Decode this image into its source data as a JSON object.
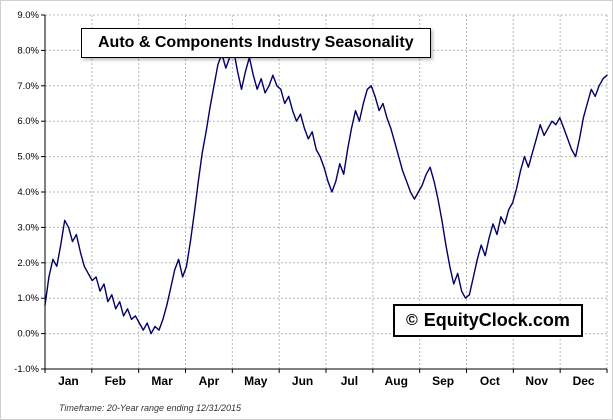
{
  "title": "Auto & Components Industry Seasonality",
  "watermark": {
    "copyright_symbol": "©",
    "text": "EquityClock.com"
  },
  "footnote": "Timeframe: 20-Year range ending 12/31/2015",
  "colors": {
    "line": "#000066",
    "grid": "#b8b8b8",
    "axis": "#000000",
    "background": "#ffffff",
    "label": "#000000"
  },
  "chart_data": {
    "type": "line",
    "title": "Auto & Components Industry Seasonality",
    "xlabel": "",
    "ylabel": "",
    "x_categories": [
      "Jan",
      "Feb",
      "Mar",
      "Apr",
      "May",
      "Jun",
      "Jul",
      "Aug",
      "Sep",
      "Oct",
      "Nov",
      "Dec"
    ],
    "y_tick_labels": [
      "9.0%",
      "8.0%",
      "7.0%",
      "6.0%",
      "5.0%",
      "4.0%",
      "3.0%",
      "2.0%",
      "1.0%",
      "0.0%",
      "-1.0%"
    ],
    "ylim": [
      -1.0,
      9.0
    ],
    "x_range": [
      0,
      12
    ],
    "points_per_month": 12,
    "x_spacing": "evenly spaced across Jan-Dec",
    "grid": true,
    "legend_position": "none",
    "values": [
      0.8,
      1.6,
      2.1,
      1.9,
      2.5,
      3.2,
      3.0,
      2.6,
      2.8,
      2.3,
      1.9,
      1.7,
      1.5,
      1.6,
      1.2,
      1.4,
      0.9,
      1.1,
      0.7,
      0.9,
      0.5,
      0.7,
      0.4,
      0.5,
      0.3,
      0.1,
      0.3,
      0.0,
      0.2,
      0.1,
      0.4,
      0.8,
      1.3,
      1.8,
      2.1,
      1.6,
      1.9,
      2.6,
      3.4,
      4.3,
      5.1,
      5.7,
      6.4,
      7.0,
      7.6,
      7.9,
      7.5,
      7.8,
      8.0,
      7.4,
      6.9,
      7.4,
      7.8,
      7.3,
      6.9,
      7.2,
      6.8,
      7.0,
      7.3,
      7.0,
      6.9,
      6.5,
      6.7,
      6.3,
      6.0,
      6.2,
      5.8,
      5.5,
      5.7,
      5.2,
      5.0,
      4.7,
      4.3,
      4.0,
      4.3,
      4.8,
      4.5,
      5.2,
      5.8,
      6.3,
      6.0,
      6.5,
      6.9,
      7.0,
      6.7,
      6.3,
      6.5,
      6.1,
      5.8,
      5.4,
      5.0,
      4.6,
      4.3,
      4.0,
      3.8,
      4.0,
      4.2,
      4.5,
      4.7,
      4.3,
      3.8,
      3.2,
      2.5,
      1.9,
      1.4,
      1.7,
      1.2,
      1.0,
      1.1,
      1.6,
      2.1,
      2.5,
      2.2,
      2.7,
      3.1,
      2.8,
      3.3,
      3.1,
      3.5,
      3.7,
      4.1,
      4.6,
      5.0,
      4.7,
      5.1,
      5.5,
      5.9,
      5.6,
      5.8,
      6.0,
      5.9,
      6.1,
      5.8,
      5.5,
      5.2,
      5.0,
      5.5,
      6.1,
      6.5,
      6.9,
      6.7,
      7.0,
      7.2,
      7.3
    ]
  }
}
